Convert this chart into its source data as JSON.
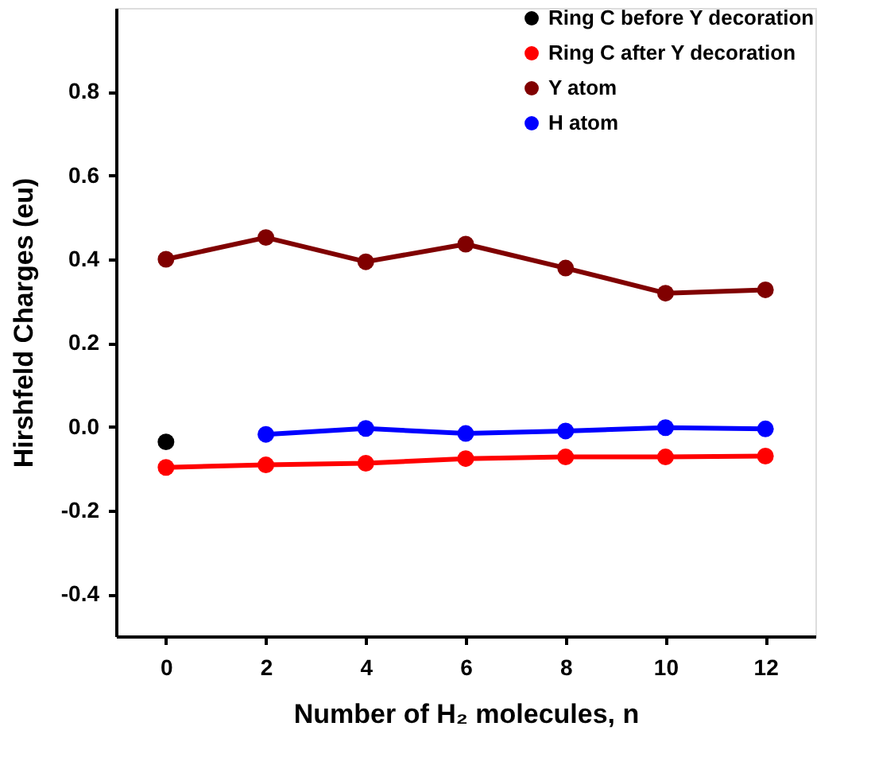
{
  "chart_data": {
    "type": "line",
    "xlabel": "Number of H₂ molecules, n",
    "ylabel": "Hirshfeld Charges (eu)",
    "xlim": [
      -1,
      13
    ],
    "xticks": [
      0,
      2,
      4,
      6,
      8,
      10,
      12
    ],
    "ylim": [
      -0.5,
      1.0
    ],
    "yticks": [
      -0.4,
      -0.2,
      {
        "value": 0,
        "label": "0.0"
      },
      0.2,
      0.4,
      0.6,
      0.8
    ],
    "grid": false,
    "legend": "top right",
    "marker": "circle",
    "line_style": "solid",
    "series": [
      {
        "name": "Ring C before Y decoration",
        "color": "#000000",
        "x": [
          0
        ],
        "values": [
          -0.036
        ]
      },
      {
        "name": "Ring C after Y decoration",
        "color": "#ff0000",
        "x": [
          0,
          2,
          4,
          6,
          8,
          10,
          12
        ],
        "values": [
          -0.097,
          -0.091,
          -0.087,
          -0.076,
          -0.072,
          -0.072,
          -0.07
        ]
      },
      {
        "name": "Y atom",
        "color": "#800000",
        "x": [
          0,
          2,
          4,
          6,
          8,
          10,
          12
        ],
        "values": [
          0.4,
          0.452,
          0.394,
          0.436,
          0.379,
          0.319,
          0.327
        ]
      },
      {
        "name": "H atom",
        "color": "#0000ff",
        "x": [
          2,
          4,
          6,
          8,
          10,
          12
        ],
        "values": [
          -0.018,
          -0.004,
          -0.016,
          -0.01,
          -0.002,
          -0.005
        ]
      }
    ]
  }
}
